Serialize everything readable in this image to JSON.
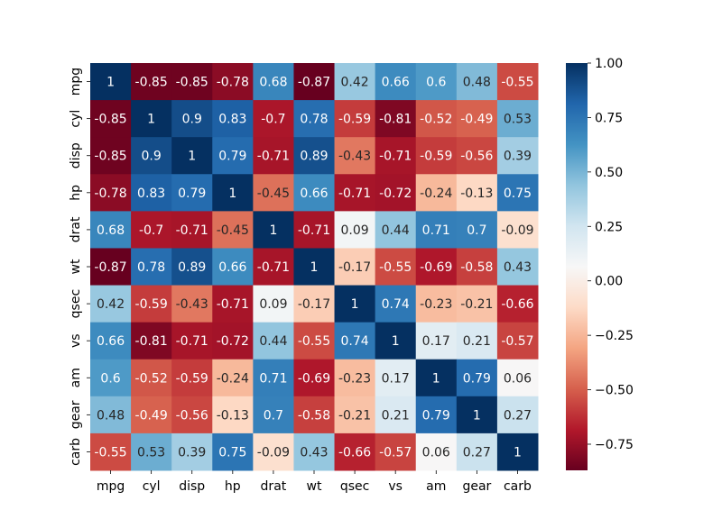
{
  "chart_data": {
    "type": "heatmap",
    "x_categories": [
      "mpg",
      "cyl",
      "disp",
      "hp",
      "drat",
      "wt",
      "qsec",
      "vs",
      "am",
      "gear",
      "carb"
    ],
    "y_categories": [
      "mpg",
      "cyl",
      "disp",
      "hp",
      "drat",
      "wt",
      "qsec",
      "vs",
      "am",
      "gear",
      "carb"
    ],
    "values": [
      [
        1,
        -0.85,
        -0.85,
        -0.78,
        0.68,
        -0.87,
        0.42,
        0.66,
        0.6,
        0.48,
        -0.55
      ],
      [
        -0.85,
        1,
        0.9,
        0.83,
        -0.7,
        0.78,
        -0.59,
        -0.81,
        -0.52,
        -0.49,
        0.53
      ],
      [
        -0.85,
        0.9,
        1,
        0.79,
        -0.71,
        0.89,
        -0.43,
        -0.71,
        -0.59,
        -0.56,
        0.39
      ],
      [
        -0.78,
        0.83,
        0.79,
        1,
        -0.45,
        0.66,
        -0.71,
        -0.72,
        -0.24,
        -0.13,
        0.75
      ],
      [
        0.68,
        -0.7,
        -0.71,
        -0.45,
        1,
        -0.71,
        0.09,
        0.44,
        0.71,
        0.7,
        -0.09
      ],
      [
        -0.87,
        0.78,
        0.89,
        0.66,
        -0.71,
        1,
        -0.17,
        -0.55,
        -0.69,
        -0.58,
        0.43
      ],
      [
        0.42,
        -0.59,
        -0.43,
        -0.71,
        0.09,
        -0.17,
        1,
        0.74,
        -0.23,
        -0.21,
        -0.66
      ],
      [
        0.66,
        -0.81,
        -0.71,
        -0.72,
        0.44,
        -0.55,
        0.74,
        1,
        0.17,
        0.21,
        -0.57
      ],
      [
        0.6,
        -0.52,
        -0.59,
        -0.24,
        0.71,
        -0.69,
        -0.23,
        0.17,
        1,
        0.79,
        0.06
      ],
      [
        0.48,
        -0.49,
        -0.56,
        -0.13,
        0.7,
        -0.58,
        -0.21,
        0.21,
        0.79,
        1,
        0.27
      ],
      [
        -0.55,
        0.53,
        0.39,
        0.75,
        -0.09,
        0.43,
        -0.66,
        -0.57,
        0.06,
        0.27,
        1
      ]
    ],
    "annotations": true,
    "colormap": "RdBu",
    "colormap_stops": [
      "#67001f",
      "#b2182b",
      "#d6604d",
      "#f4a582",
      "#fddbc7",
      "#f7f7f7",
      "#d1e5f0",
      "#92c5de",
      "#4393c3",
      "#2166ac",
      "#053061"
    ],
    "color_range": [
      -0.87,
      1.0
    ],
    "colorbar": {
      "ticks": [
        1.0,
        0.75,
        0.5,
        0.25,
        0.0,
        -0.25,
        -0.5,
        -0.75
      ],
      "tick_labels": [
        "1.00",
        "0.75",
        "0.50",
        "0.25",
        "0.00",
        "−0.25",
        "−0.50",
        "−0.75"
      ]
    },
    "title": "",
    "xlabel": "",
    "ylabel": "",
    "grid": false,
    "legend": "colorbar-right"
  }
}
